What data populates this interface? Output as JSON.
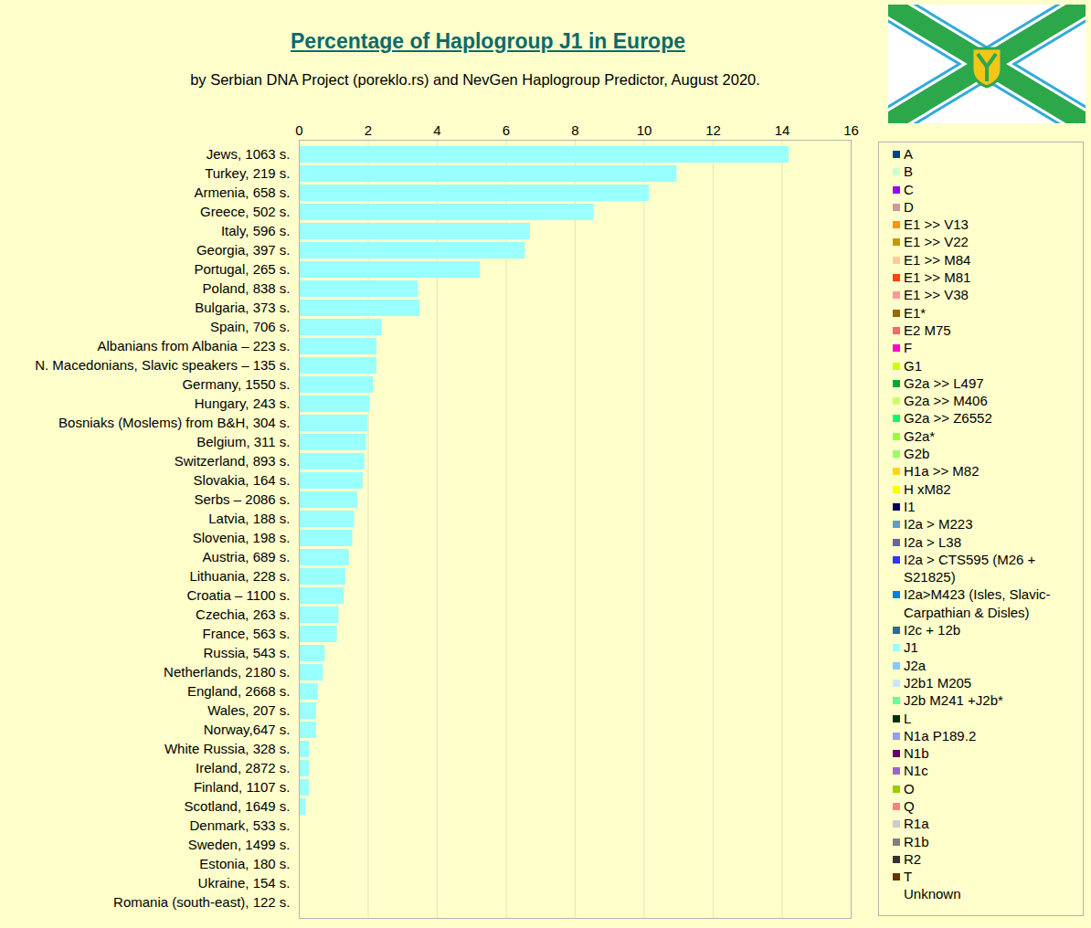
{
  "chart_data": {
    "type": "bar",
    "orientation": "horizontal",
    "title": "Percentage of Haplogroup J1 in Europe",
    "subtitle": "by Serbian DNA Project (poreklo.rs) and NevGen Haplogroup Predictor, August 2020.",
    "categories": [
      "Jews, 1063 s.",
      "Turkey, 219 s.",
      "Armenia, 658 s.",
      "Greece, 502 s.",
      "Italy, 596 s.",
      "Georgia, 397 s.",
      "Portugal, 265 s.",
      "Poland, 838 s.",
      "Bulgaria, 373 s.",
      "Spain, 706 s.",
      "Albanians from Albania – 223 s.",
      "N. Macedonians, Slavic speakers – 135 s.",
      "Germany, 1550 s.",
      "Hungary, 243 s.",
      "Bosniaks (Moslems) from B&H, 304 s.",
      "Belgium, 311 s.",
      "Switzerland, 893 s.",
      "Slovakia, 164 s.",
      "Serbs – 2086 s.",
      "Latvia, 188 s.",
      "Slovenia, 198 s.",
      "Austria, 689 s.",
      "Lithuania, 228 s.",
      "Croatia – 1100 s.",
      "Czechia, 263 s.",
      "France, 563 s.",
      "Russia, 543 s.",
      "Netherlands, 2180 s.",
      "England, 2668 s.",
      "Wales, 207 s.",
      "Norway,647 s.",
      "White Russia, 328 s.",
      "Ireland, 2872 s.",
      "Finland, 1107 s.",
      "Scotland, 1649 s.",
      "Denmark, 533 s.",
      "Sweden, 1499 s.",
      "Estonia, 180 s.",
      "Ukraine, 154 s.",
      "Romania (south-east), 122 s."
    ],
    "values": [
      14.2,
      10.95,
      10.15,
      8.55,
      6.7,
      6.55,
      5.25,
      3.45,
      3.5,
      2.4,
      2.25,
      2.25,
      2.15,
      2.05,
      2.0,
      1.95,
      1.9,
      1.85,
      1.7,
      1.6,
      1.55,
      1.45,
      1.35,
      1.3,
      1.15,
      1.1,
      0.75,
      0.7,
      0.55,
      0.5,
      0.5,
      0.3,
      0.3,
      0.3,
      0.2,
      0,
      0,
      0,
      0,
      0
    ],
    "color": "#99ffff",
    "xlim": [
      0,
      16
    ],
    "xticks": [
      0,
      2,
      4,
      6,
      8,
      10,
      12,
      14,
      16
    ],
    "grid": true,
    "legend": "right",
    "legend_entries": [
      {
        "name": "A",
        "color": "#004586"
      },
      {
        "name": "B",
        "color": "#ccffcc"
      },
      {
        "name": "C",
        "color": "#9900ff"
      },
      {
        "name": "D",
        "color": "#cc9999"
      },
      {
        "name": "E1 >> V13",
        "color": "#ff950e"
      },
      {
        "name": "E1 >> V22",
        "color": "#c59a00"
      },
      {
        "name": "E1 >> M84",
        "color": "#ffcc99"
      },
      {
        "name": "E1 >> M81",
        "color": "#ff420e"
      },
      {
        "name": "E1 >> V38",
        "color": "#ff9999"
      },
      {
        "name": "E1*",
        "color": "#996600"
      },
      {
        "name": "E2 M75",
        "color": "#ff6666"
      },
      {
        "name": "F",
        "color": "#ff00cc"
      },
      {
        "name": "G1",
        "color": "#ccff00"
      },
      {
        "name": "G2a >> L497",
        "color": "#00a933"
      },
      {
        "name": "G2a >> M406",
        "color": "#ccff66"
      },
      {
        "name": "G2a >> Z6552",
        "color": "#00ff66"
      },
      {
        "name": "G2a*",
        "color": "#99ff33"
      },
      {
        "name": "G2b",
        "color": "#99ff66"
      },
      {
        "name": "H1a >> M82",
        "color": "#ffd320"
      },
      {
        "name": "H xM82",
        "color": "#ffff00"
      },
      {
        "name": "I1",
        "color": "#000066"
      },
      {
        "name": "I2a > M223",
        "color": "#6699cc"
      },
      {
        "name": "I2a > L38",
        "color": "#666699"
      },
      {
        "name": "I2a > CTS595 (M26 + S21825)",
        "color": "#3333ff"
      },
      {
        "name": "I2a>M423 (Isles, Slavic-Carpathian & Disles)",
        "color": "#0084d1"
      },
      {
        "name": "I2c + 12b",
        "color": "#336699"
      },
      {
        "name": "J1",
        "color": "#99ffff"
      },
      {
        "name": "J2a",
        "color": "#83caff"
      },
      {
        "name": "J2b1 M205",
        "color": "#cce5ff"
      },
      {
        "name": "J2b M241 +J2b*",
        "color": "#66ff99"
      },
      {
        "name": "L",
        "color": "#003300"
      },
      {
        "name": "N1a P189.2",
        "color": "#9999ff"
      },
      {
        "name": "N1b",
        "color": "#660066"
      },
      {
        "name": "N1c",
        "color": "#9966cc"
      },
      {
        "name": "O",
        "color": "#99cc00"
      },
      {
        "name": "Q",
        "color": "#ff8080"
      },
      {
        "name": "R1a",
        "color": "#cccccc"
      },
      {
        "name": "R1b",
        "color": "#808080"
      },
      {
        "name": "R2",
        "color": "#333333"
      },
      {
        "name": "T",
        "color": "#663300"
      },
      {
        "name": "Unknown",
        "color": "#ffffcc"
      }
    ]
  }
}
